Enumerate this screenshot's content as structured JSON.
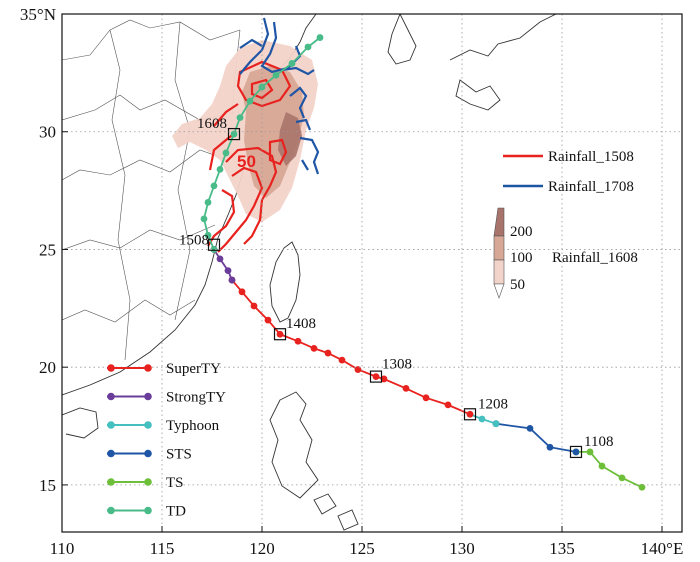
{
  "axes": {
    "x_ticks": [
      {
        "lon": 110,
        "label": "110"
      },
      {
        "lon": 115,
        "label": "115"
      },
      {
        "lon": 120,
        "label": "120"
      },
      {
        "lon": 125,
        "label": "125"
      },
      {
        "lon": 130,
        "label": "130"
      },
      {
        "lon": 135,
        "label": "135"
      },
      {
        "lon": 140,
        "label": "140°E"
      }
    ],
    "y_ticks": [
      {
        "lat": 35,
        "label": "35°N"
      },
      {
        "lat": 30,
        "label": "30"
      },
      {
        "lat": 25,
        "label": "25"
      },
      {
        "lat": 20,
        "label": "20"
      },
      {
        "lat": 15,
        "label": "15"
      }
    ],
    "lon_range": [
      110,
      141
    ],
    "lat_range": [
      13,
      35
    ]
  },
  "track_time_labels": [
    {
      "label": "1108",
      "lon": 135.7,
      "lat": 16.4
    },
    {
      "label": "1208",
      "lon": 130.4,
      "lat": 18.0
    },
    {
      "label": "1308",
      "lon": 125.7,
      "lat": 19.6
    },
    {
      "label": "1408",
      "lon": 120.9,
      "lat": 21.4
    },
    {
      "label": "1508",
      "lon": 117.6,
      "lat": 25.2
    },
    {
      "label": "1608",
      "lon": 118.6,
      "lat": 29.9
    }
  ],
  "contour_label": "50",
  "rainfall_legend": [
    {
      "label": "Rainfall_1508",
      "color": "#e8221e"
    },
    {
      "label": "Rainfall_1708",
      "color": "#1f55a5"
    }
  ],
  "shading_legend": {
    "label": "Rainfall_1608",
    "levels": [
      "200",
      "100",
      "50"
    ]
  },
  "intensity_legend": [
    {
      "label": "SuperTY",
      "color": "#e8221e"
    },
    {
      "label": "StrongTY",
      "color": "#6a3d9a"
    },
    {
      "label": "Typhoon",
      "color": "#45bfbf"
    },
    {
      "label": "STS",
      "color": "#1f55a5"
    },
    {
      "label": "TS",
      "color": "#6dbf3a"
    },
    {
      "label": "TD",
      "color": "#48bb88"
    }
  ],
  "track_segments": [
    {
      "category": "TS",
      "points": [
        [
          139.0,
          14.9
        ],
        [
          138.0,
          15.3
        ],
        [
          137.0,
          15.8
        ],
        [
          136.4,
          16.4
        ],
        [
          135.7,
          16.4
        ]
      ]
    },
    {
      "category": "STS",
      "points": [
        [
          135.7,
          16.4
        ],
        [
          134.4,
          16.6
        ],
        [
          133.4,
          17.4
        ],
        [
          131.7,
          17.6
        ]
      ]
    },
    {
      "category": "Typhoon",
      "points": [
        [
          131.7,
          17.6
        ],
        [
          131.0,
          17.8
        ],
        [
          130.4,
          18.0
        ]
      ]
    },
    {
      "category": "SuperTY",
      "points": [
        [
          130.4,
          18.0
        ],
        [
          129.3,
          18.4
        ],
        [
          128.2,
          18.7
        ],
        [
          127.2,
          19.1
        ],
        [
          126.1,
          19.5
        ],
        [
          125.7,
          19.6
        ],
        [
          124.8,
          19.9
        ],
        [
          124.0,
          20.3
        ],
        [
          123.3,
          20.6
        ],
        [
          122.6,
          20.8
        ],
        [
          121.8,
          21.1
        ],
        [
          120.9,
          21.4
        ],
        [
          120.3,
          22.0
        ],
        [
          119.6,
          22.6
        ],
        [
          119.0,
          23.2
        ],
        [
          118.5,
          23.7
        ]
      ]
    },
    {
      "category": "StrongTY",
      "points": [
        [
          118.5,
          23.7
        ],
        [
          118.3,
          24.1
        ],
        [
          117.9,
          24.6
        ],
        [
          117.6,
          25.0
        ]
      ]
    },
    {
      "category": "TD",
      "points": [
        [
          117.6,
          25.0
        ],
        [
          117.3,
          25.6
        ],
        [
          117.1,
          26.3
        ],
        [
          117.3,
          27.0
        ],
        [
          117.6,
          27.7
        ],
        [
          117.9,
          28.4
        ],
        [
          118.2,
          29.1
        ],
        [
          118.6,
          29.9
        ],
        [
          118.9,
          30.6
        ],
        [
          119.4,
          31.3
        ],
        [
          120.0,
          31.9
        ],
        [
          120.7,
          32.4
        ],
        [
          121.5,
          32.9
        ],
        [
          122.3,
          33.6
        ],
        [
          122.9,
          34.0
        ]
      ]
    }
  ]
}
